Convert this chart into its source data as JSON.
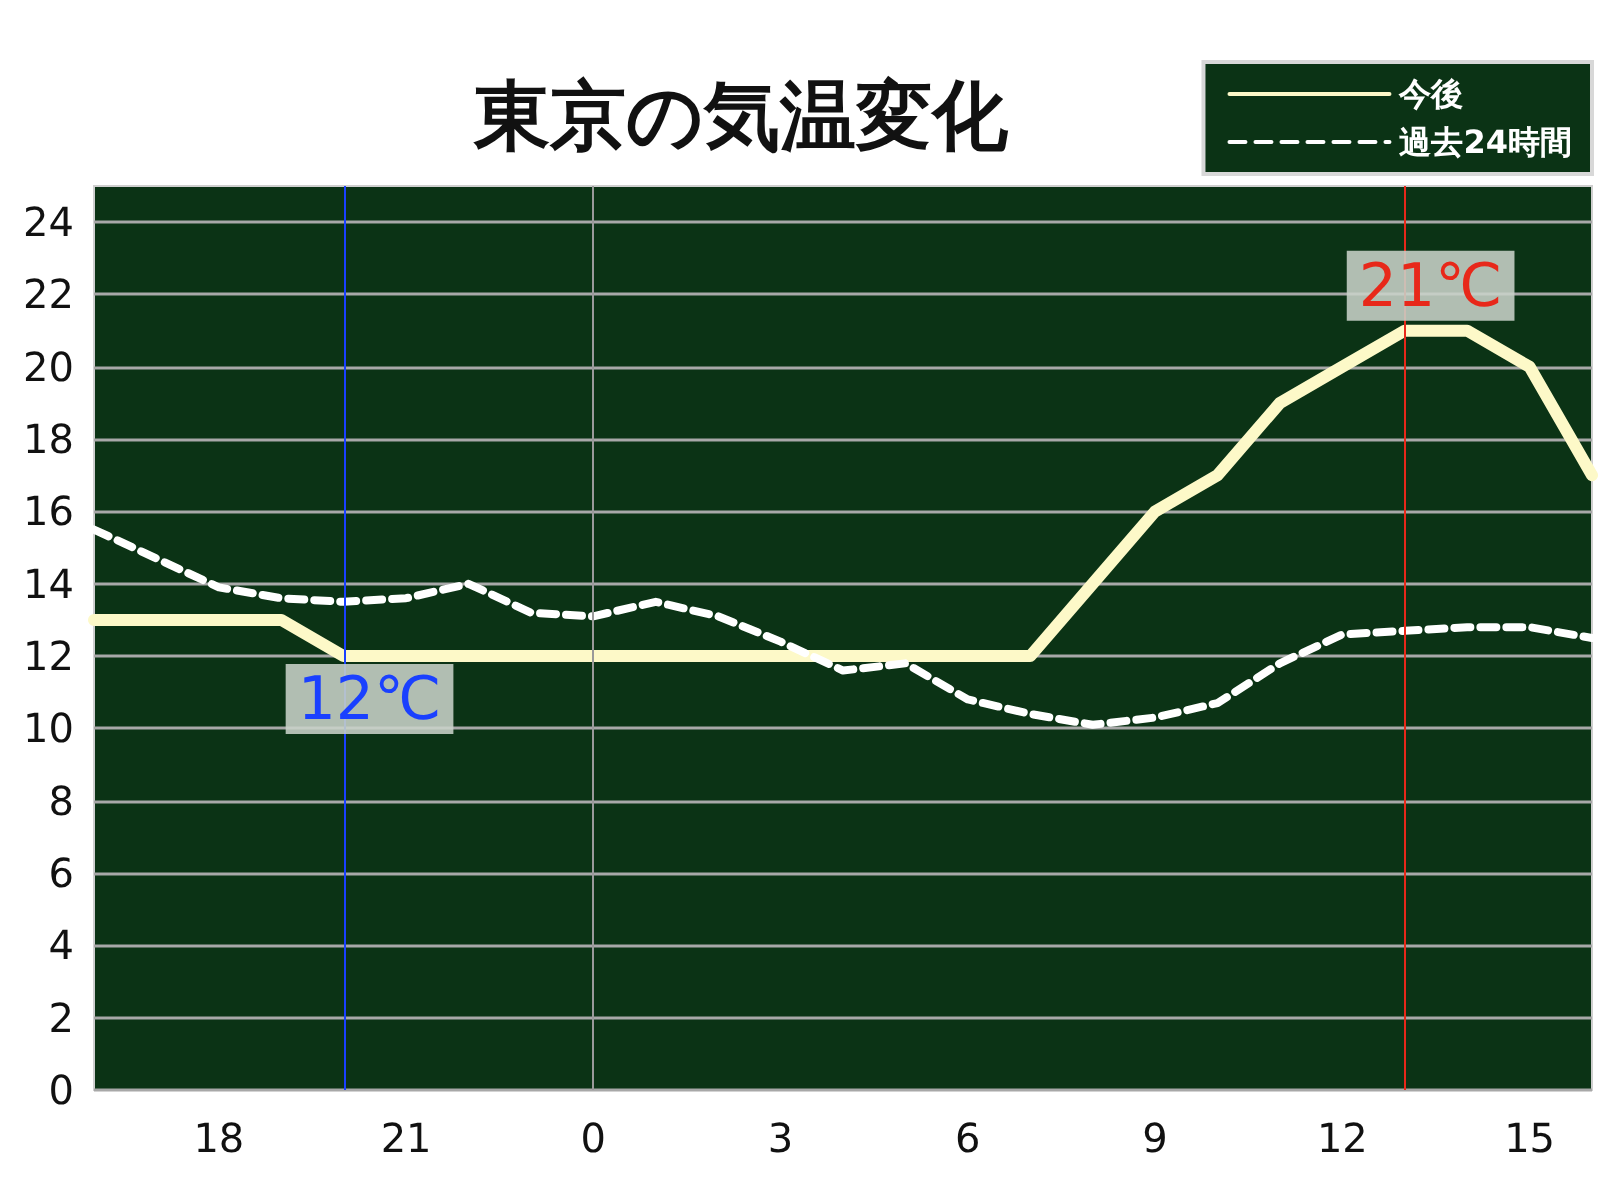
{
  "chart_data": {
    "type": "line",
    "title": "東京の気温変化",
    "categories": [
      null,
      null,
      "18",
      null,
      null,
      "21",
      null,
      null,
      "0",
      null,
      null,
      "3",
      null,
      null,
      "6",
      null,
      null,
      "9",
      null,
      null,
      "12",
      null,
      null,
      "15",
      null
    ],
    "ylim": [
      0,
      25
    ],
    "yticks": [
      0,
      2,
      4,
      6,
      8,
      10,
      12,
      14,
      16,
      18,
      20,
      22,
      24
    ],
    "series": [
      {
        "name": "今後",
        "color": "#fdf9c8",
        "line_style": "solid",
        "values": [
          13,
          13,
          13,
          13,
          12,
          12,
          12,
          12,
          12,
          12,
          12,
          12,
          12,
          12,
          12,
          12,
          14,
          16,
          17,
          19,
          20,
          21,
          21,
          20,
          17
        ]
      },
      {
        "name": "過去24時間",
        "color": "#ffffff",
        "line_style": "dashed",
        "values": [
          15.5,
          14.7,
          13.9,
          13.6,
          13.5,
          13.6,
          14.0,
          13.2,
          13.1,
          13.5,
          13.1,
          12.4,
          11.6,
          11.8,
          10.8,
          10.4,
          10.1,
          10.3,
          10.7,
          11.8,
          12.6,
          12.7,
          12.8,
          12.8,
          12.5
        ]
      }
    ],
    "ref_lines": [
      {
        "axis": "x",
        "value": "0",
        "color": "#9a9a9a"
      }
    ],
    "annotations": [
      {
        "text": "12℃",
        "y": 12
      },
      {
        "text": "21℃",
        "y": 21
      }
    ],
    "grid": "y",
    "legend": "top right",
    "marker": "none"
  }
}
